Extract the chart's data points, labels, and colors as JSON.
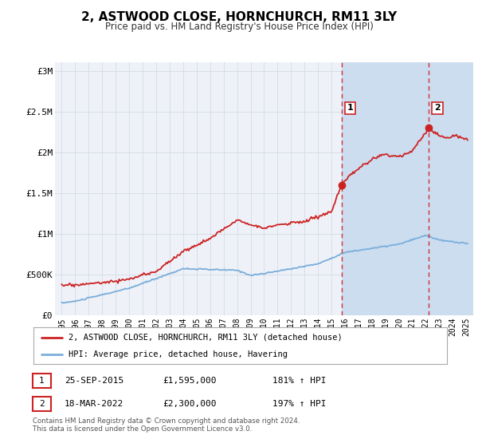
{
  "title": "2, ASTWOOD CLOSE, HORNCHURCH, RM11 3LY",
  "subtitle": "Price paid vs. HM Land Registry's House Price Index (HPI)",
  "background_color": "#ffffff",
  "plot_bg_color": "#eef2f8",
  "grid_color": "#d8dde8",
  "sale1_date_num": 2015.73,
  "sale1_price": 1595000,
  "sale2_date_num": 2022.21,
  "sale2_price": 2300000,
  "hpi_line_color": "#7aadda",
  "price_line_color": "#cc2222",
  "sale_dot_color": "#cc2222",
  "vline_color": "#cc3333",
  "shade_color": "#ccddf0",
  "ylim_min": 0,
  "ylim_max": 3100000,
  "xlim_min": 1994.5,
  "xlim_max": 2025.5,
  "ytick_values": [
    0,
    500000,
    1000000,
    1500000,
    2000000,
    2500000,
    3000000
  ],
  "ytick_labels": [
    "£0",
    "£500K",
    "£1M",
    "£1.5M",
    "£2M",
    "£2.5M",
    "£3M"
  ],
  "xtick_values": [
    1995,
    1996,
    1997,
    1998,
    1999,
    2000,
    2001,
    2002,
    2003,
    2004,
    2005,
    2006,
    2007,
    2008,
    2009,
    2010,
    2011,
    2012,
    2013,
    2014,
    2015,
    2016,
    2017,
    2018,
    2019,
    2020,
    2021,
    2022,
    2023,
    2024,
    2025
  ],
  "legend_price_label": "2, ASTWOOD CLOSE, HORNCHURCH, RM11 3LY (detached house)",
  "legend_hpi_label": "HPI: Average price, detached house, Havering",
  "table_row1_num": "1",
  "table_row1_date": "25-SEP-2015",
  "table_row1_price": "£1,595,000",
  "table_row1_pct": "181% ↑ HPI",
  "table_row2_num": "2",
  "table_row2_date": "18-MAR-2022",
  "table_row2_price": "£2,300,000",
  "table_row2_pct": "197% ↑ HPI",
  "footnote1": "Contains HM Land Registry data © Crown copyright and database right 2024.",
  "footnote2": "This data is licensed under the Open Government Licence v3.0."
}
